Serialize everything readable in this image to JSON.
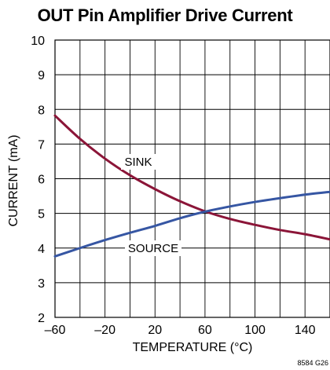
{
  "chart_data": {
    "type": "line",
    "title": "OUT Pin Amplifier Drive Current",
    "xlabel": "TEMPERATURE (°C)",
    "ylabel": "CURRENT (mA)",
    "xlim": [
      -60,
      160
    ],
    "ylim": [
      2,
      10
    ],
    "x_ticks": [
      "–60",
      "–20",
      "20",
      "60",
      "100",
      "140"
    ],
    "y_ticks": [
      "2",
      "3",
      "4",
      "5",
      "6",
      "7",
      "8",
      "9",
      "10"
    ],
    "grid": true,
    "series": [
      {
        "name": "SINK",
        "color": "#8b1538",
        "x": [
          -60,
          -40,
          -20,
          0,
          20,
          40,
          60,
          80,
          100,
          120,
          140,
          160
        ],
        "y": [
          7.82,
          7.15,
          6.58,
          6.1,
          5.7,
          5.35,
          5.06,
          4.84,
          4.67,
          4.52,
          4.4,
          4.25
        ]
      },
      {
        "name": "SOURCE",
        "color": "#3656a3",
        "x": [
          -60,
          -40,
          -20,
          0,
          20,
          40,
          60,
          80,
          100,
          120,
          140,
          160
        ],
        "y": [
          3.76,
          4.0,
          4.23,
          4.44,
          4.64,
          4.86,
          5.05,
          5.2,
          5.33,
          5.44,
          5.54,
          5.62
        ]
      }
    ],
    "annotations": [
      "SINK",
      "SOURCE"
    ],
    "figure_id": "8584 G26"
  }
}
